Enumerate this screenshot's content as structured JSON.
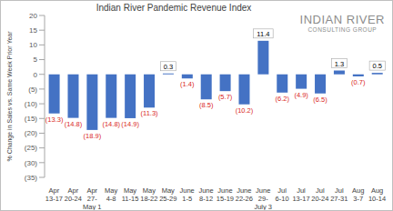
{
  "chart_data": {
    "type": "bar",
    "title": "Indian River Pandemic Revenue Index",
    "y_label": "% Change in Sales vs. Same Week Prior Year",
    "annotations": [
      "INDIAN RIVER",
      "CONSULTING GROUP"
    ],
    "categories": [
      "Apr 13-17",
      "Apr 20-24",
      "Apr 27- May 1",
      "May 4-8",
      "May 11-15",
      "May 18-22",
      "May 25-29",
      "June 1-5",
      "June 8-12",
      "June 15-19",
      "June 22-26",
      "June 29- July 3",
      "Jul 6-10",
      "Jul 13-17",
      "Jul 20-24",
      "Jul 27-31",
      "Aug 3-7",
      "Aug 10-14"
    ],
    "values": [
      -13.3,
      -14.8,
      -18.9,
      -14.8,
      -14.9,
      -11.3,
      0.3,
      -1.4,
      -8.5,
      -5.7,
      -10.2,
      11.4,
      -6.2,
      -4.9,
      -6.5,
      1.3,
      -0.7,
      0.5
    ],
    "value_labels": [
      "(13.3)",
      "(14.8)",
      "(18.9)",
      "(14.8)",
      "(14.9)",
      "(11.3)",
      "0.3",
      "(1.4)",
      "(8.5)",
      "(5.7)",
      "(10.2)",
      "11.4",
      "(6.2)",
      "(4.9)",
      "(6.5)",
      "1.3",
      "(0.7)",
      "0.5"
    ],
    "color": "#4472c4",
    "ylim": [
      -35,
      20
    ],
    "yticks": [
      {
        "value": -35,
        "label": "(35)"
      },
      {
        "value": -30,
        "label": "(30)"
      },
      {
        "value": -25,
        "label": "(25)"
      },
      {
        "value": -20,
        "label": "(20)"
      },
      {
        "value": -15,
        "label": "(15)"
      },
      {
        "value": -10,
        "label": "(10)"
      },
      {
        "value": -5,
        "label": "(5)"
      },
      0,
      5,
      10,
      15,
      20
    ],
    "grid": false,
    "data_labels": true
  }
}
